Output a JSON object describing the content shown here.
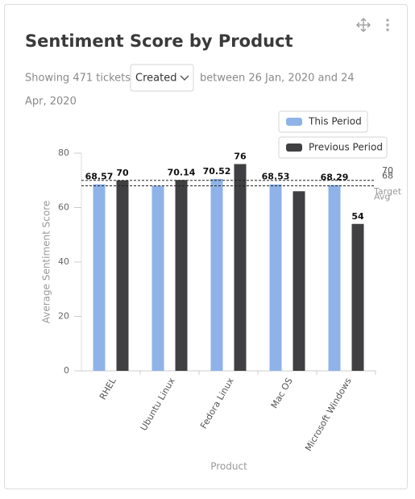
{
  "chart_data": {
    "type": "bar",
    "title": "Sentiment Score by Product",
    "filter": {
      "prefix": "Showing 471 tickets",
      "dropdown": "Created",
      "range_line1": "between 26 Jan, 2020 and 24",
      "range_line2": "Apr, 2020"
    },
    "x_label": "Product",
    "y_label": "Average Sentiment Score",
    "categories": [
      "RHEL",
      "Ubuntu Linux",
      "Fedora Linux",
      "Mac OS",
      "Microsoft Windows"
    ],
    "series": [
      {
        "name": "This Period",
        "color": "#8fb3e8",
        "values": [
          68.57,
          68,
          70.52,
          68.53,
          68.29
        ],
        "value_labels": [
          "68.57",
          null,
          "70.52",
          "68.53",
          "68.29"
        ]
      },
      {
        "name": "Previous Period",
        "color": "#404043",
        "values": [
          70,
          70.14,
          76,
          66,
          54
        ],
        "value_labels": [
          "70",
          "70.14",
          "76",
          null,
          "54"
        ]
      }
    ],
    "reference_lines": [
      {
        "value": 68,
        "label": "Avg"
      },
      {
        "value": 70,
        "label": "Target"
      }
    ],
    "ylim": [
      0,
      80
    ],
    "yticks": [
      0,
      20,
      40,
      60,
      80
    ]
  }
}
